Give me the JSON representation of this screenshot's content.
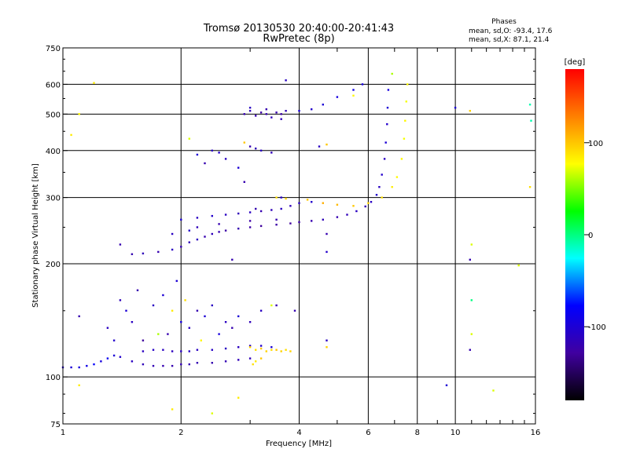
{
  "chart_data": {
    "type": "scatter",
    "title": "Tromsø 20130530 20:40:00-20:41:43",
    "subtitle": "RwPretec (8p)",
    "stats": {
      "title": "Phases",
      "line_o": "mean, sd,O: -93.4, 17.6",
      "line_x": "mean, sd,X:  87.1, 21.4"
    },
    "xlabel": "Frequency [MHz]",
    "ylabel": "Stationary phase Virtual Height [km]",
    "x_scale": "log",
    "y_scale": "log",
    "xlim": [
      1,
      16
    ],
    "ylim": [
      75,
      750
    ],
    "x_ticks": [
      1,
      2,
      4,
      6,
      8,
      10,
      16
    ],
    "x_tick_labels": [
      "1",
      "2",
      "4",
      "6",
      "8",
      "10",
      "16"
    ],
    "x_gridlines": [
      1,
      2,
      4,
      6,
      8,
      10,
      16
    ],
    "y_ticks": [
      75,
      100,
      200,
      300,
      400,
      500,
      600,
      750
    ],
    "y_tick_labels": [
      "75",
      "100",
      "200",
      "300",
      "400",
      "500",
      "600",
      "750"
    ],
    "y_gridlines": [
      100,
      200,
      300,
      400,
      500,
      600
    ],
    "colorbar": {
      "label": "[deg]",
      "range": [
        -180,
        180
      ],
      "ticks": [
        100,
        0,
        -100
      ],
      "tick_labels": [
        "100",
        "0",
        "-100"
      ],
      "colors": [
        "#ff0000",
        "#ff8000",
        "#ffff00",
        "#00ff00",
        "#00ffff",
        "#0000ff",
        "#4000a0",
        "#000000"
      ]
    },
    "series": [
      {
        "group": "E-layer trace (O-mode)",
        "points": [
          [
            1.0,
            106,
            -105
          ],
          [
            1.05,
            106,
            -100
          ],
          [
            1.1,
            106,
            -95
          ],
          [
            1.15,
            107,
            -90
          ],
          [
            1.2,
            108,
            -80
          ],
          [
            1.25,
            110,
            -95
          ],
          [
            1.3,
            112,
            -85
          ],
          [
            1.35,
            114,
            -100
          ],
          [
            1.4,
            113,
            -105
          ],
          [
            1.5,
            110,
            -110
          ],
          [
            1.6,
            108,
            -115
          ],
          [
            1.7,
            107,
            -118
          ],
          [
            1.8,
            107,
            -120
          ],
          [
            1.9,
            107,
            -120
          ],
          [
            2.0,
            108,
            -118
          ],
          [
            2.1,
            108,
            -120
          ],
          [
            2.2,
            109,
            -118
          ],
          [
            2.4,
            109,
            -120
          ],
          [
            2.6,
            110,
            -118
          ],
          [
            2.8,
            111,
            -115
          ],
          [
            3.0,
            112,
            -115
          ]
        ]
      },
      {
        "group": "E-layer second trace",
        "points": [
          [
            1.6,
            117,
            -110
          ],
          [
            1.7,
            118,
            -108
          ],
          [
            1.8,
            118,
            -110
          ],
          [
            1.9,
            117,
            -112
          ],
          [
            2.0,
            117,
            -110
          ],
          [
            2.1,
            117,
            -108
          ],
          [
            2.2,
            118,
            -110
          ],
          [
            2.4,
            118,
            -108
          ],
          [
            2.6,
            119,
            -110
          ],
          [
            2.8,
            120,
            -112
          ],
          [
            3.0,
            121,
            -110
          ],
          [
            3.2,
            121,
            -105
          ],
          [
            3.4,
            120,
            -100
          ]
        ]
      },
      {
        "group": "E-layer X-mode echoes",
        "points": [
          [
            3.0,
            120,
            95
          ],
          [
            3.1,
            118,
            90
          ],
          [
            3.2,
            119,
            100
          ],
          [
            3.3,
            117,
            95
          ],
          [
            3.4,
            118,
            90
          ],
          [
            3.5,
            118,
            100
          ],
          [
            3.6,
            117,
            95
          ],
          [
            3.7,
            118,
            90
          ],
          [
            3.8,
            117,
            95
          ],
          [
            3.1,
            110,
            85
          ],
          [
            3.2,
            112,
            100
          ],
          [
            3.05,
            108,
            90
          ]
        ]
      },
      {
        "group": "Sporadic E scatter",
        "points": [
          [
            1.1,
            145,
            -120
          ],
          [
            1.3,
            135,
            -110
          ],
          [
            1.4,
            160,
            -115
          ],
          [
            1.45,
            150,
            -100
          ],
          [
            1.5,
            140,
            -110
          ],
          [
            1.55,
            170,
            -120
          ],
          [
            1.6,
            125,
            -130
          ],
          [
            1.7,
            155,
            -110
          ],
          [
            1.8,
            165,
            -100
          ],
          [
            1.85,
            130,
            -120
          ],
          [
            1.9,
            150,
            85
          ],
          [
            1.95,
            180,
            -100
          ],
          [
            2.0,
            140,
            -95
          ],
          [
            2.05,
            160,
            90
          ],
          [
            2.1,
            135,
            -110
          ],
          [
            2.2,
            150,
            -120
          ],
          [
            2.3,
            145,
            -100
          ],
          [
            2.4,
            155,
            -110
          ],
          [
            2.5,
            130,
            -95
          ],
          [
            2.6,
            140,
            -110
          ],
          [
            2.7,
            135,
            -120
          ],
          [
            2.8,
            145,
            -100
          ],
          [
            3.0,
            140,
            -115
          ],
          [
            3.2,
            150,
            -110
          ],
          [
            3.5,
            155,
            -120
          ],
          [
            1.35,
            125,
            -105
          ],
          [
            1.75,
            130,
            60
          ],
          [
            2.25,
            125,
            80
          ]
        ]
      },
      {
        "group": "F-layer trace (O-mode)",
        "points": [
          [
            1.5,
            212,
            -120
          ],
          [
            1.6,
            213,
            -115
          ],
          [
            1.75,
            215,
            -120
          ],
          [
            1.9,
            218,
            -110
          ],
          [
            2.0,
            222,
            -120
          ],
          [
            2.1,
            228,
            -115
          ],
          [
            2.2,
            232,
            -110
          ],
          [
            2.3,
            236,
            -120
          ],
          [
            2.4,
            240,
            -115
          ],
          [
            2.5,
            243,
            -120
          ],
          [
            2.6,
            245,
            -125
          ],
          [
            2.8,
            248,
            -120
          ],
          [
            3.0,
            250,
            -125
          ],
          [
            3.2,
            252,
            -130
          ],
          [
            3.5,
            254,
            -125
          ],
          [
            3.8,
            256,
            -130
          ],
          [
            4.0,
            258,
            -125
          ],
          [
            4.3,
            260,
            -120
          ],
          [
            4.6,
            262,
            -115
          ],
          [
            5.0,
            266,
            -120
          ],
          [
            5.3,
            270,
            -115
          ],
          [
            5.6,
            276,
            -110
          ],
          [
            5.9,
            284,
            -115
          ],
          [
            6.1,
            292,
            -110
          ],
          [
            6.3,
            305,
            -105
          ],
          [
            6.4,
            320,
            -110
          ],
          [
            6.5,
            345,
            -105
          ],
          [
            6.6,
            380,
            -110
          ],
          [
            6.65,
            420,
            -100
          ],
          [
            6.7,
            470,
            -105
          ],
          [
            6.72,
            520,
            -100
          ],
          [
            6.75,
            580,
            -95
          ]
        ]
      },
      {
        "group": "F-layer band",
        "points": [
          [
            2.0,
            262,
            -100
          ],
          [
            2.2,
            265,
            -110
          ],
          [
            2.4,
            268,
            -105
          ],
          [
            2.6,
            270,
            -110
          ],
          [
            2.8,
            272,
            -115
          ],
          [
            3.0,
            274,
            -110
          ],
          [
            3.2,
            276,
            -120
          ],
          [
            3.4,
            278,
            -115
          ],
          [
            3.6,
            280,
            -110
          ],
          [
            3.8,
            285,
            -115
          ],
          [
            4.0,
            290,
            -110
          ],
          [
            4.3,
            292,
            -105
          ],
          [
            2.5,
            255,
            -120
          ],
          [
            3.0,
            260,
            -125
          ],
          [
            3.5,
            262,
            -120
          ],
          [
            2.2,
            250,
            -115
          ],
          [
            1.9,
            240,
            -110
          ],
          [
            2.1,
            245,
            -105
          ]
        ]
      },
      {
        "group": "F-layer X-mode trace",
        "points": [
          [
            3.5,
            300,
            90
          ],
          [
            3.7,
            298,
            95
          ],
          [
            4.2,
            296,
            100
          ],
          [
            4.6,
            290,
            110
          ],
          [
            5.0,
            287,
            105
          ],
          [
            5.5,
            285,
            100
          ],
          [
            6.0,
            290,
            95
          ],
          [
            6.5,
            300,
            90
          ],
          [
            6.9,
            320,
            85
          ],
          [
            7.1,
            340,
            80
          ],
          [
            7.3,
            380,
            80
          ],
          [
            7.4,
            430,
            75
          ],
          [
            7.45,
            480,
            80
          ],
          [
            7.5,
            540,
            75
          ],
          [
            7.55,
            600,
            80
          ],
          [
            6.9,
            640,
            60
          ]
        ]
      },
      {
        "group": "Upper F echoes",
        "points": [
          [
            2.9,
            500,
            -120
          ],
          [
            3.0,
            510,
            -115
          ],
          [
            3.1,
            495,
            -120
          ],
          [
            3.2,
            505,
            -125
          ],
          [
            3.3,
            500,
            -120
          ],
          [
            3.4,
            490,
            -115
          ],
          [
            3.5,
            505,
            -120
          ],
          [
            3.6,
            500,
            -125
          ],
          [
            3.7,
            510,
            -115
          ],
          [
            3.0,
            520,
            -110
          ],
          [
            3.3,
            515,
            -120
          ],
          [
            3.6,
            485,
            -115
          ],
          [
            4.0,
            510,
            -100
          ],
          [
            4.3,
            515,
            -105
          ],
          [
            4.6,
            530,
            -100
          ],
          [
            5.0,
            555,
            -95
          ],
          [
            5.5,
            580,
            -90
          ],
          [
            5.8,
            600,
            -95
          ],
          [
            2.4,
            400,
            -110
          ],
          [
            2.5,
            395,
            -105
          ],
          [
            2.6,
            380,
            -110
          ],
          [
            2.3,
            370,
            -120
          ],
          [
            2.8,
            360,
            -100
          ],
          [
            3.0,
            410,
            -120
          ],
          [
            3.1,
            405,
            -115
          ],
          [
            3.2,
            400,
            -110
          ],
          [
            3.4,
            395,
            -115
          ],
          [
            2.9,
            420,
            100
          ],
          [
            5.5,
            560,
            80
          ],
          [
            3.7,
            615,
            -110
          ]
        ]
      },
      {
        "group": "Isolated points",
        "points": [
          [
            1.2,
            605,
            85
          ],
          [
            1.1,
            500,
            80
          ],
          [
            1.05,
            440,
            85
          ],
          [
            10.0,
            520,
            -100
          ],
          [
            10.9,
            510,
            95
          ],
          [
            15.5,
            530,
            -10
          ],
          [
            15.6,
            480,
            -10
          ],
          [
            15.5,
            320,
            90
          ],
          [
            10.9,
            205,
            -120
          ],
          [
            11.0,
            225,
            70
          ],
          [
            14.5,
            198,
            70
          ],
          [
            11.0,
            160,
            0
          ],
          [
            10.9,
            118,
            -120
          ],
          [
            11.0,
            130,
            70
          ],
          [
            12.5,
            92,
            70
          ],
          [
            9.5,
            95,
            -100
          ],
          [
            1.1,
            95,
            85
          ],
          [
            1.9,
            82,
            85
          ],
          [
            2.4,
            80,
            70
          ],
          [
            2.8,
            88,
            85
          ],
          [
            4.7,
            125,
            -110
          ],
          [
            4.7,
            120,
            95
          ],
          [
            4.7,
            215,
            -105
          ],
          [
            4.7,
            240,
            -120
          ],
          [
            2.2,
            390,
            -100
          ],
          [
            2.1,
            430,
            70
          ],
          [
            2.7,
            205,
            -120
          ],
          [
            3.4,
            155,
            70
          ],
          [
            3.9,
            150,
            -120
          ],
          [
            4.5,
            410,
            -110
          ],
          [
            4.7,
            415,
            100
          ],
          [
            3.6,
            300,
            -110
          ],
          [
            2.9,
            330,
            -120
          ],
          [
            3.1,
            280,
            -120
          ],
          [
            1.4,
            225,
            -120
          ]
        ]
      }
    ]
  }
}
